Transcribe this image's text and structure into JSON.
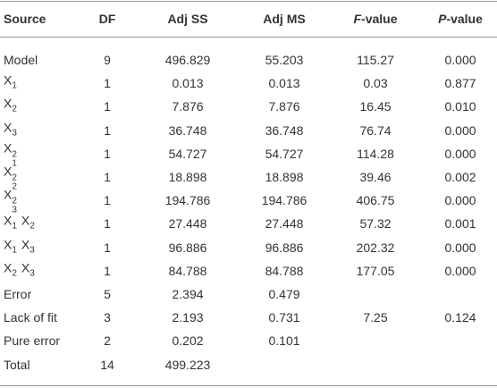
{
  "table": {
    "headers": [
      "Source",
      "DF",
      "Adj SS",
      "Adj MS",
      {
        "italic": "F",
        "rest": "-value"
      },
      {
        "italic": "P",
        "rest": "-value"
      }
    ],
    "rows": [
      [
        "Model",
        "9",
        "496.829",
        "55.203",
        "115.27",
        "0.000"
      ],
      [
        [
          {
            "symbol": "X",
            "sub": "1"
          }
        ],
        "1",
        "0.013",
        "0.013",
        "0.03",
        "0.877"
      ],
      [
        [
          {
            "symbol": "X",
            "sub": "2"
          }
        ],
        "1",
        "7.876",
        "7.876",
        "16.45",
        "0.010"
      ],
      [
        [
          {
            "symbol": "X",
            "sub": "3"
          }
        ],
        "1",
        "36.748",
        "36.748",
        "76.74",
        "0.000"
      ],
      [
        [
          {
            "symbol": "X",
            "sub": "1",
            "sup": "2"
          }
        ],
        "1",
        "54.727",
        "54.727",
        "114.28",
        "0.000"
      ],
      [
        [
          {
            "symbol": "X",
            "sub": "2",
            "sup": "2"
          }
        ],
        "1",
        "18.898",
        "18.898",
        "39.46",
        "0.002"
      ],
      [
        [
          {
            "symbol": "X",
            "sub": "3",
            "sup": "2"
          }
        ],
        "1",
        "194.786",
        "194.786",
        "406.75",
        "0.000"
      ],
      [
        [
          {
            "symbol": "X",
            "sub": "1"
          },
          {
            "symbol": "X",
            "sub": "2"
          }
        ],
        "1",
        "27.448",
        "27.448",
        "57.32",
        "0.001"
      ],
      [
        [
          {
            "symbol": "X",
            "sub": "1"
          },
          {
            "symbol": "X",
            "sub": "3"
          }
        ],
        "1",
        "96.886",
        "96.886",
        "202.32",
        "0.000"
      ],
      [
        [
          {
            "symbol": "X",
            "sub": "2"
          },
          {
            "symbol": "X",
            "sub": "3"
          }
        ],
        "1",
        "84.788",
        "84.788",
        "177.05",
        "0.000"
      ],
      [
        "Error",
        "5",
        "2.394",
        "0.479",
        null,
        null
      ],
      [
        "Lack of fit",
        "3",
        "2.193",
        "0.731",
        "7.25",
        "0.124"
      ],
      [
        "Pure error",
        "2",
        "0.202",
        "0.101",
        null,
        null
      ],
      [
        "Total",
        "14",
        "499.223",
        null,
        null,
        null
      ]
    ]
  }
}
